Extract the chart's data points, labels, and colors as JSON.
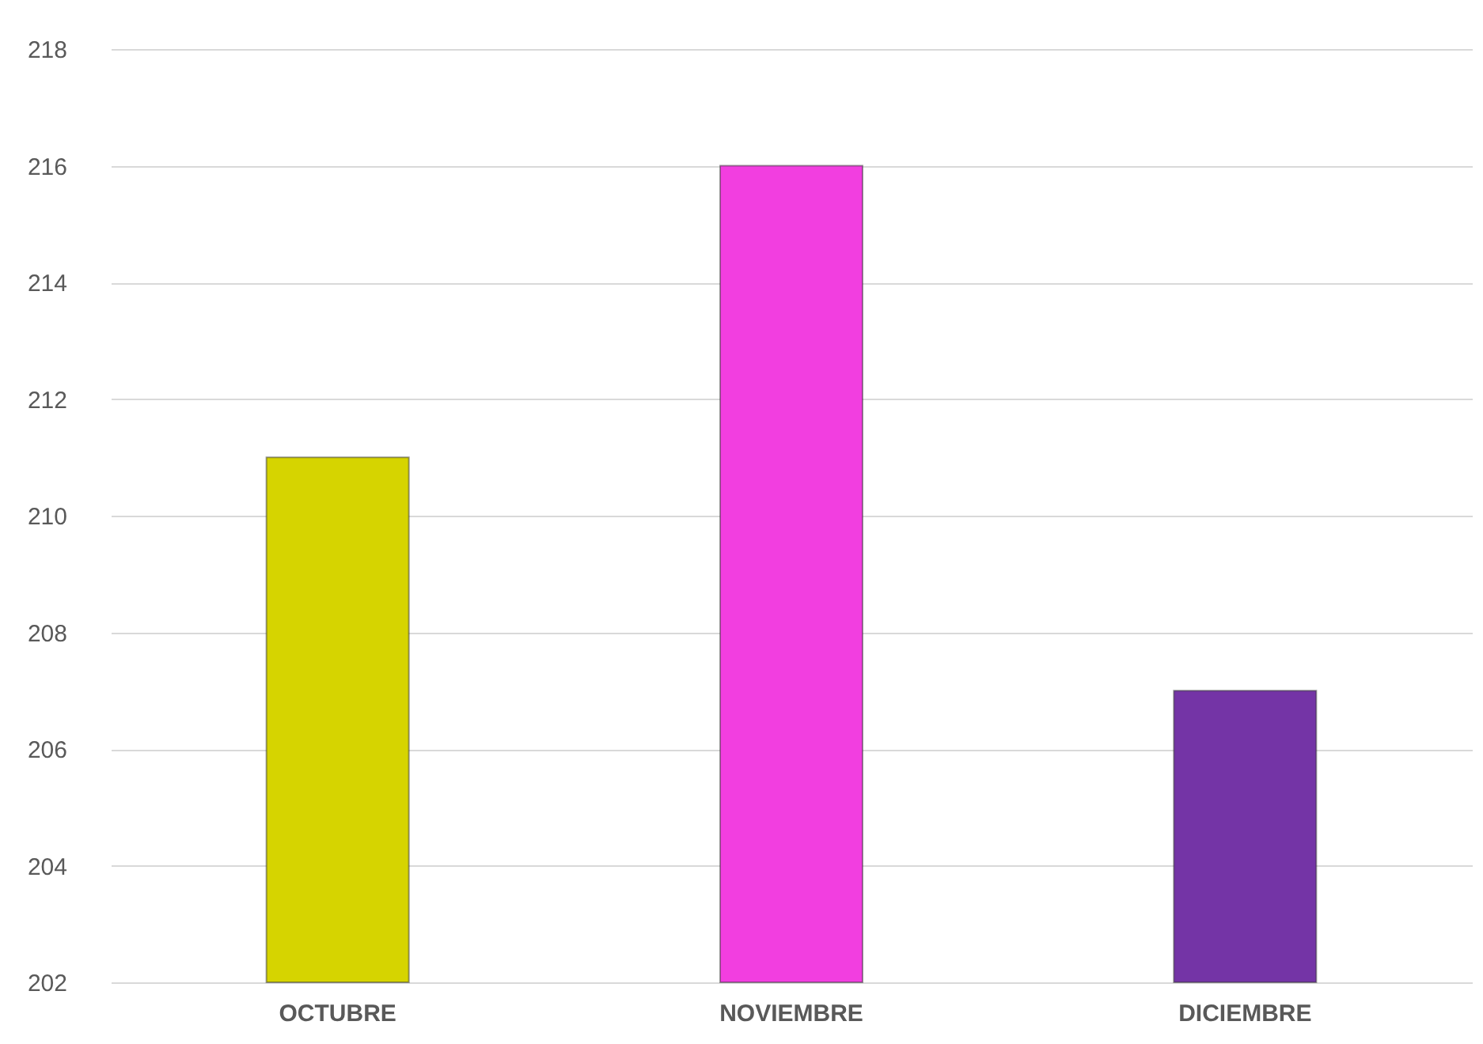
{
  "chart_data": {
    "type": "bar",
    "categories": [
      "OCTUBRE",
      "NOVIEMBRE",
      "DICIEMBRE"
    ],
    "values": [
      211,
      216,
      207
    ],
    "colors": [
      "#d6d400",
      "#f23ee0",
      "#7434a6"
    ],
    "ylim": [
      202,
      218
    ],
    "yticks": [
      202,
      204,
      206,
      208,
      210,
      212,
      214,
      216,
      218
    ],
    "grid": "y"
  }
}
